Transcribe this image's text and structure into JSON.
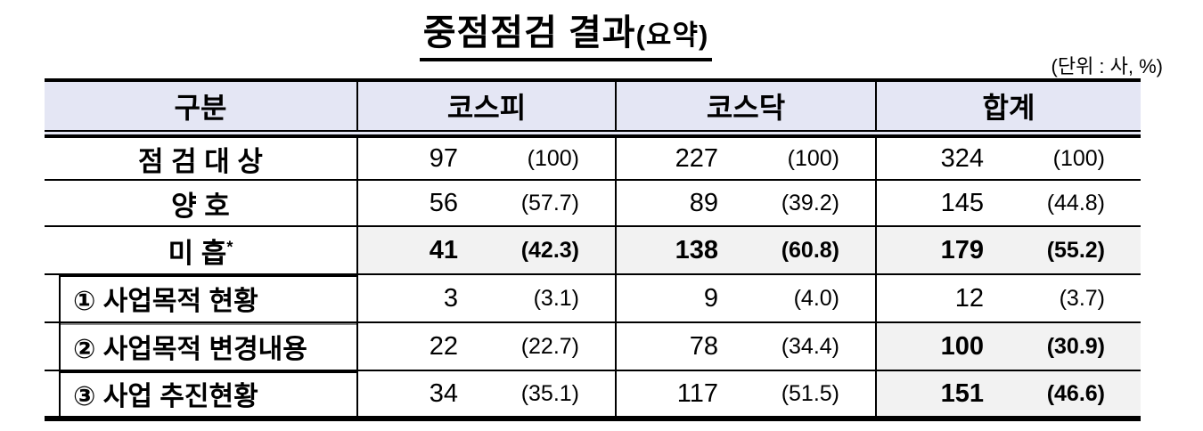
{
  "title": {
    "text": "중점점검 결과",
    "suffix": "(요약)"
  },
  "unit_note": "(단위 : 사, %)",
  "table": {
    "header": {
      "category": "구분",
      "kospi": "코스피",
      "kosdaq": "코스닥",
      "total": "합계"
    },
    "rows": [
      {
        "label": "점 검 대 상",
        "cells": [
          {
            "n": "97",
            "p": "(100)"
          },
          {
            "n": "227",
            "p": "(100)"
          },
          {
            "n": "324",
            "p": "(100)"
          }
        ]
      },
      {
        "label": "양 호",
        "cells": [
          {
            "n": "56",
            "p": "(57.7)"
          },
          {
            "n": "89",
            "p": "(39.2)"
          },
          {
            "n": "145",
            "p": "(44.8)"
          }
        ]
      },
      {
        "label": "미 흡",
        "label_sup": "*",
        "cells": [
          {
            "n": "41",
            "p": "(42.3)"
          },
          {
            "n": "138",
            "p": "(60.8)"
          },
          {
            "n": "179",
            "p": "(55.2)"
          }
        ]
      },
      {
        "label": "① 사업목적 현황",
        "cells": [
          {
            "n": "3",
            "p": "(3.1)"
          },
          {
            "n": "9",
            "p": "(4.0)"
          },
          {
            "n": "12",
            "p": "(3.7)"
          }
        ]
      },
      {
        "label": "② 사업목적 변경내용",
        "cells": [
          {
            "n": "22",
            "p": "(22.7)"
          },
          {
            "n": "78",
            "p": "(34.4)"
          },
          {
            "n": "100",
            "p": "(30.9)"
          }
        ]
      },
      {
        "label": "③ 사업 추진현황",
        "cells": [
          {
            "n": "34",
            "p": "(35.1)"
          },
          {
            "n": "117",
            "p": "(51.5)"
          },
          {
            "n": "151",
            "p": "(46.6)"
          }
        ]
      }
    ]
  },
  "colors": {
    "header_bg": "#e4e6f4",
    "highlight_bg": "#f2f2f2",
    "border": "#000000",
    "gray_rule": "#888888"
  }
}
